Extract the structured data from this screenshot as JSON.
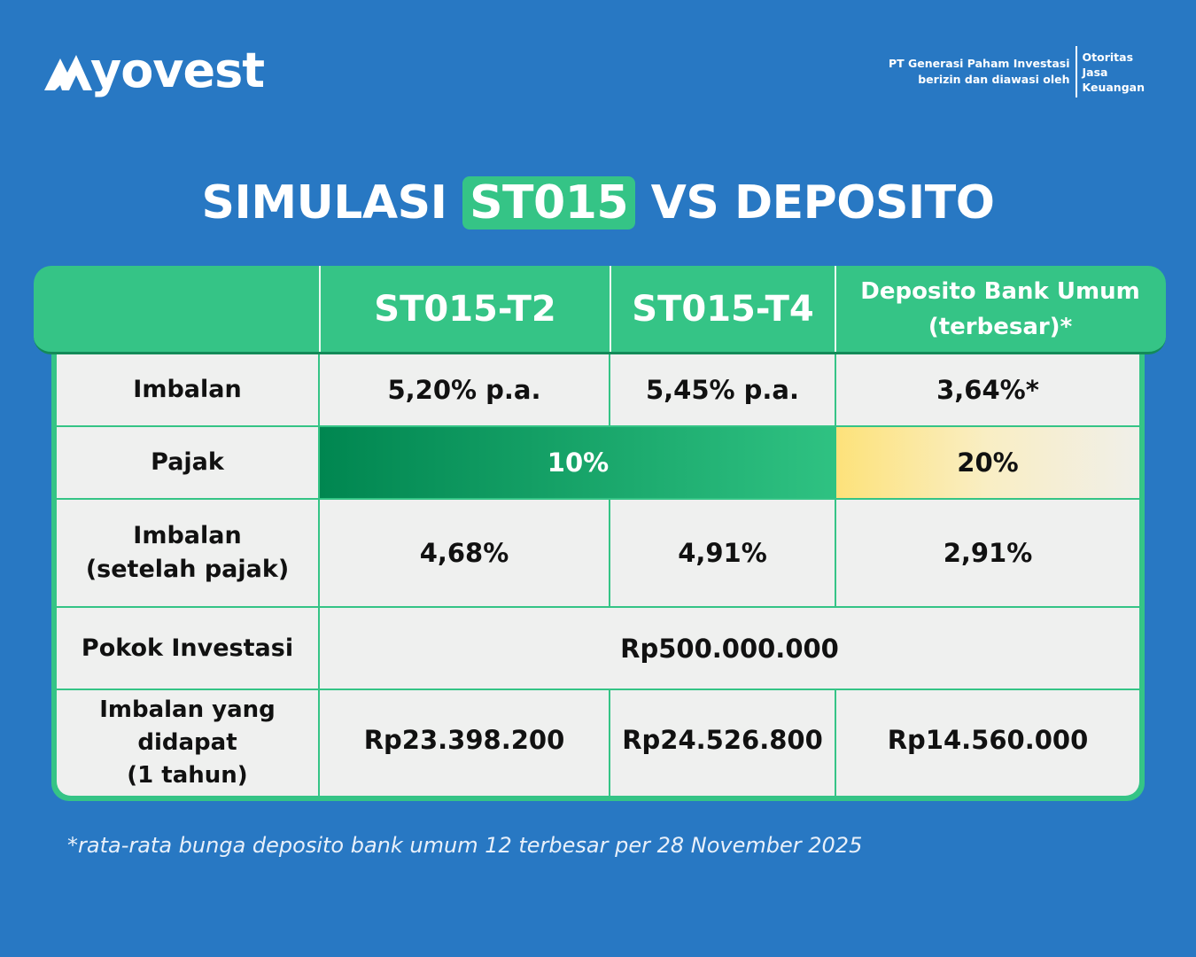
{
  "brand": {
    "name": "yovest",
    "logo_icon": "mountain-n-icon"
  },
  "regulator": {
    "line1": "PT Generasi Paham Investasi",
    "line2": "berizin dan diawasi oleh",
    "ojk": [
      "Otoritas",
      "Jasa",
      "Keuangan"
    ]
  },
  "title": {
    "pre": "SIMULASI",
    "highlight": "ST015",
    "post": "VS DEPOSITO"
  },
  "table": {
    "columns": [
      "ST015-T2",
      "ST015-T4",
      "Deposito Bank Umum",
      "(terbesar)*"
    ],
    "rows": {
      "imbalan": {
        "label": "Imbalan",
        "t2": "5,20% p.a.",
        "t4": "5,45% p.a.",
        "deposito": "3,64%*"
      },
      "pajak": {
        "label": "Pajak",
        "sbn": "10%",
        "deposito": "20%"
      },
      "imbalan_setelah": {
        "label1": "Imbalan",
        "label2": "(setelah pajak)",
        "t2": "4,68%",
        "t4": "4,91%",
        "deposito": "2,91%"
      },
      "pokok": {
        "label": "Pokok Investasi",
        "value": "Rp500.000.000"
      },
      "imbalan_didapat": {
        "label1": "Imbalan yang",
        "label2": "didapat",
        "label3": "(1 tahun)",
        "t2": "Rp23.398.200",
        "t4": "Rp24.526.800",
        "deposito": "Rp14.560.000"
      }
    },
    "colors": {
      "green": "#35c486",
      "dark_green": "#008650",
      "yellow": "#fde27a",
      "background": "#2878c3"
    }
  },
  "footnote": "*rata-rata bunga deposito bank umum 12 terbesar per 28 November 2025"
}
